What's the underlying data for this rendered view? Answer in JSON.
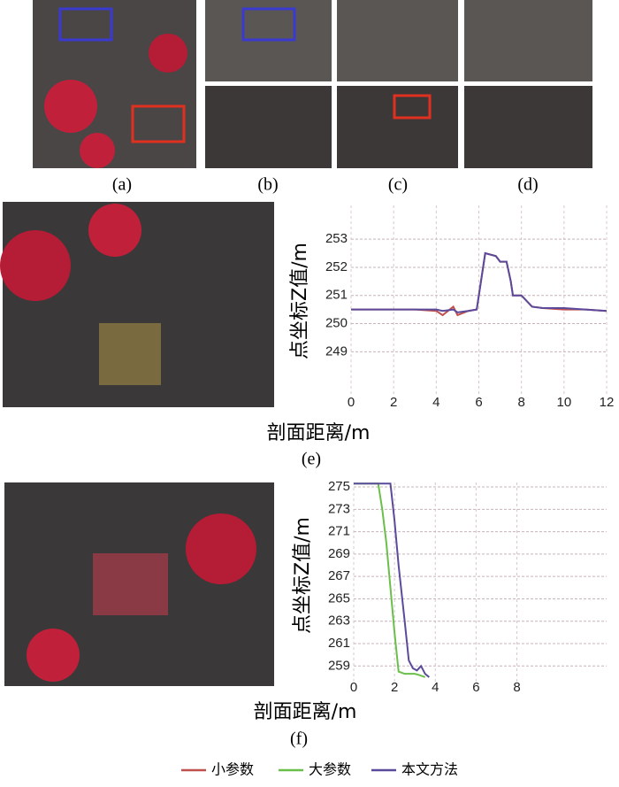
{
  "panel_labels": [
    "(a)",
    "(b)",
    "(c)",
    "(d)",
    "(e)",
    "(f)"
  ],
  "chart_data": [
    {
      "type": "line",
      "y_label": "点坐标Z值/m",
      "x_label": "剖面距离/m",
      "x": [
        0,
        1,
        2,
        3,
        4,
        4.3,
        4.8,
        5,
        5.5,
        5.9,
        6.1,
        6.3,
        6.8,
        7.0,
        7.3,
        7.5,
        7.6,
        8,
        8.5,
        9,
        10,
        11,
        12
      ],
      "series": [
        {
          "name": "小参数",
          "color": "#c0504d",
          "values": [
            250.5,
            250.5,
            250.5,
            250.5,
            250.45,
            250.3,
            250.6,
            250.3,
            250.45,
            250.5,
            251.5,
            252.5,
            252.4,
            252.2,
            252.2,
            251.5,
            251.0,
            251.0,
            250.6,
            250.55,
            250.5,
            250.5,
            250.45
          ]
        },
        {
          "name": "本文方法",
          "color": "#5b4a9b",
          "values": [
            250.5,
            250.5,
            250.5,
            250.5,
            250.5,
            250.45,
            250.5,
            250.4,
            250.45,
            250.5,
            251.5,
            252.5,
            252.4,
            252.2,
            252.2,
            251.5,
            251.0,
            251.0,
            250.6,
            250.55,
            250.55,
            250.5,
            250.45
          ]
        }
      ],
      "xlim": [
        0,
        12
      ],
      "xticks": [
        0,
        2,
        4,
        6,
        8,
        10,
        12
      ],
      "ylim": [
        247.5,
        254.2
      ],
      "yticks": [
        249,
        250,
        251,
        252,
        253
      ],
      "grid": true
    },
    {
      "type": "line",
      "y_label": "点坐标Z值/m",
      "x_label": "剖面距离/m",
      "series": [
        {
          "name": "大参数",
          "color": "#6abf4b",
          "x": [
            0,
            1.2,
            1.4,
            1.6,
            1.8,
            2.0,
            2.2,
            2.5,
            3.0,
            3.2,
            3.5
          ],
          "values": [
            275.3,
            275.3,
            273,
            270,
            266,
            262,
            258.5,
            258.3,
            258.3,
            258.2,
            258
          ]
        },
        {
          "name": "本文方法",
          "color": "#5b4a9b",
          "x": [
            0,
            1.8,
            2.0,
            2.2,
            2.5,
            2.7,
            2.9,
            3.1,
            3.3,
            3.5,
            3.7
          ],
          "values": [
            275.3,
            275.3,
            272,
            268,
            263,
            259.5,
            258.8,
            258.6,
            259,
            258.3,
            258
          ]
        }
      ],
      "xlim": [
        0,
        12.4
      ],
      "xticks": [
        0,
        2,
        4,
        6,
        8
      ],
      "ylim": [
        257.6,
        275.4
      ],
      "yticks": [
        259,
        261,
        263,
        265,
        267,
        269,
        271,
        273,
        275
      ],
      "grid": true
    }
  ]
}
